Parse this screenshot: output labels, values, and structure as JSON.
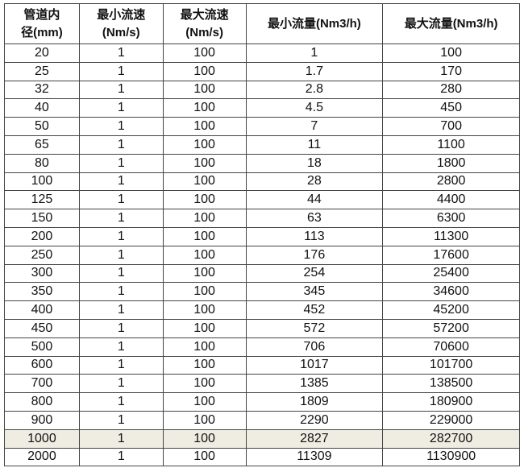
{
  "table": {
    "headers": [
      [
        "管道内",
        "径(mm)"
      ],
      [
        "最小流速",
        "(Nm/s)"
      ],
      [
        "最大流速",
        "(Nm/s)"
      ],
      [
        "最小流量(Nm3/h)",
        ""
      ],
      [
        "最大流量(Nm3/h)",
        ""
      ]
    ],
    "rows": [
      [
        "20",
        "1",
        "100",
        "1",
        "100"
      ],
      [
        "25",
        "1",
        "100",
        "1.7",
        "170"
      ],
      [
        "32",
        "1",
        "100",
        "2.8",
        "280"
      ],
      [
        "40",
        "1",
        "100",
        "4.5",
        "450"
      ],
      [
        "50",
        "1",
        "100",
        "7",
        "700"
      ],
      [
        "65",
        "1",
        "100",
        "11",
        "1100"
      ],
      [
        "80",
        "1",
        "100",
        "18",
        "1800"
      ],
      [
        "100",
        "1",
        "100",
        "28",
        "2800"
      ],
      [
        "125",
        "1",
        "100",
        "44",
        "4400"
      ],
      [
        "150",
        "1",
        "100",
        "63",
        "6300"
      ],
      [
        "200",
        "1",
        "100",
        "113",
        "11300"
      ],
      [
        "250",
        "1",
        "100",
        "176",
        "17600"
      ],
      [
        "300",
        "1",
        "100",
        "254",
        "25400"
      ],
      [
        "350",
        "1",
        "100",
        "345",
        "34600"
      ],
      [
        "400",
        "1",
        "100",
        "452",
        "45200"
      ],
      [
        "450",
        "1",
        "100",
        "572",
        "57200"
      ],
      [
        "500",
        "1",
        "100",
        "706",
        "70600"
      ],
      [
        "600",
        "1",
        "100",
        "1017",
        "101700"
      ],
      [
        "700",
        "1",
        "100",
        "1385",
        "138500"
      ],
      [
        "800",
        "1",
        "100",
        "1809",
        "180900"
      ],
      [
        "900",
        "1",
        "100",
        "2290",
        "229000"
      ],
      [
        "1000",
        "1",
        "100",
        "2827",
        "282700"
      ],
      [
        "2000",
        "1",
        "100",
        "11309",
        "1130900"
      ]
    ],
    "highlight_row_color": "#efece2"
  }
}
